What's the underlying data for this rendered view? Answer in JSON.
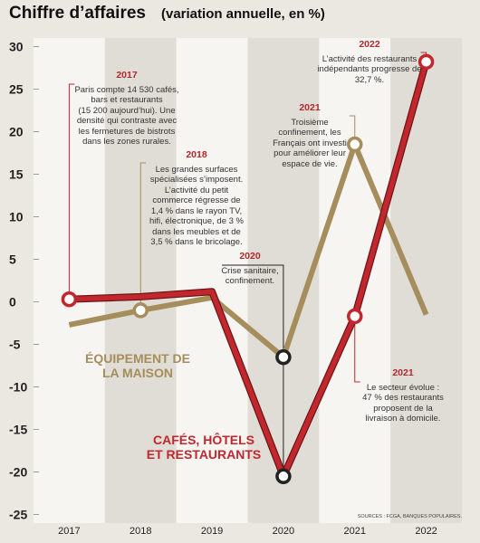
{
  "chart_data": {
    "type": "line",
    "title": "Chiffre d’affaires",
    "subtitle": "(variation annuelle, en %)",
    "categories": [
      "2017",
      "2018",
      "2019",
      "2020",
      "2021",
      "2022"
    ],
    "series": [
      {
        "name": "ÉQUIPEMENT DE LA MAISON",
        "color": "#a68d5c",
        "values": [
          -2.7,
          -1.0,
          0.5,
          -6.5,
          18.5,
          -1.5
        ]
      },
      {
        "name": "CAFÉS, HÔTELS ET RESTAURANTS",
        "color": "#c1272d",
        "values": [
          0.3,
          0.6,
          1.2,
          -20.5,
          -1.7,
          28.2
        ]
      }
    ],
    "ylim": [
      -26,
      31
    ],
    "yticks": [
      -25,
      -20,
      -15,
      -10,
      -5,
      0,
      5,
      10,
      15,
      20,
      25,
      30
    ],
    "annotations": [
      {
        "year": "2017",
        "lines": [
          "Paris compte 14 530 cafés,",
          "bars et restaurants",
          "(15 200 aujourd’hui). Une",
          "densité qui contraste avec",
          "les fermetures de bistrots",
          "dans les zones rurales."
        ]
      },
      {
        "year": "2018",
        "lines": [
          "Les grandes surfaces",
          "spécialisées s’imposent.",
          "L’activité du petit",
          "commerce régresse de",
          "1,4 % dans le rayon TV,",
          "hifi, électronique, de 3 %",
          "dans les meubles et de",
          "3,5 % dans le bricolage."
        ]
      },
      {
        "year": "2020",
        "lines": [
          "Crise sanitaire,",
          "confinement."
        ]
      },
      {
        "year": "2021",
        "lines": [
          "Troisième",
          "confinement, les",
          "Français ont investi",
          "pour améliorer leur",
          "espace de vie."
        ]
      },
      {
        "year": "2022",
        "lines": [
          "L’activité des restaurants",
          "indépendants progresse de",
          "32,7 %."
        ]
      },
      {
        "year": "2021",
        "lines": [
          "Le secteur évolue :",
          "47 % des restaurants",
          "proposent de la",
          "livraison à domicile."
        ]
      }
    ],
    "source": "SOURCES : FCGA, BANQUES POPULAIRES."
  }
}
